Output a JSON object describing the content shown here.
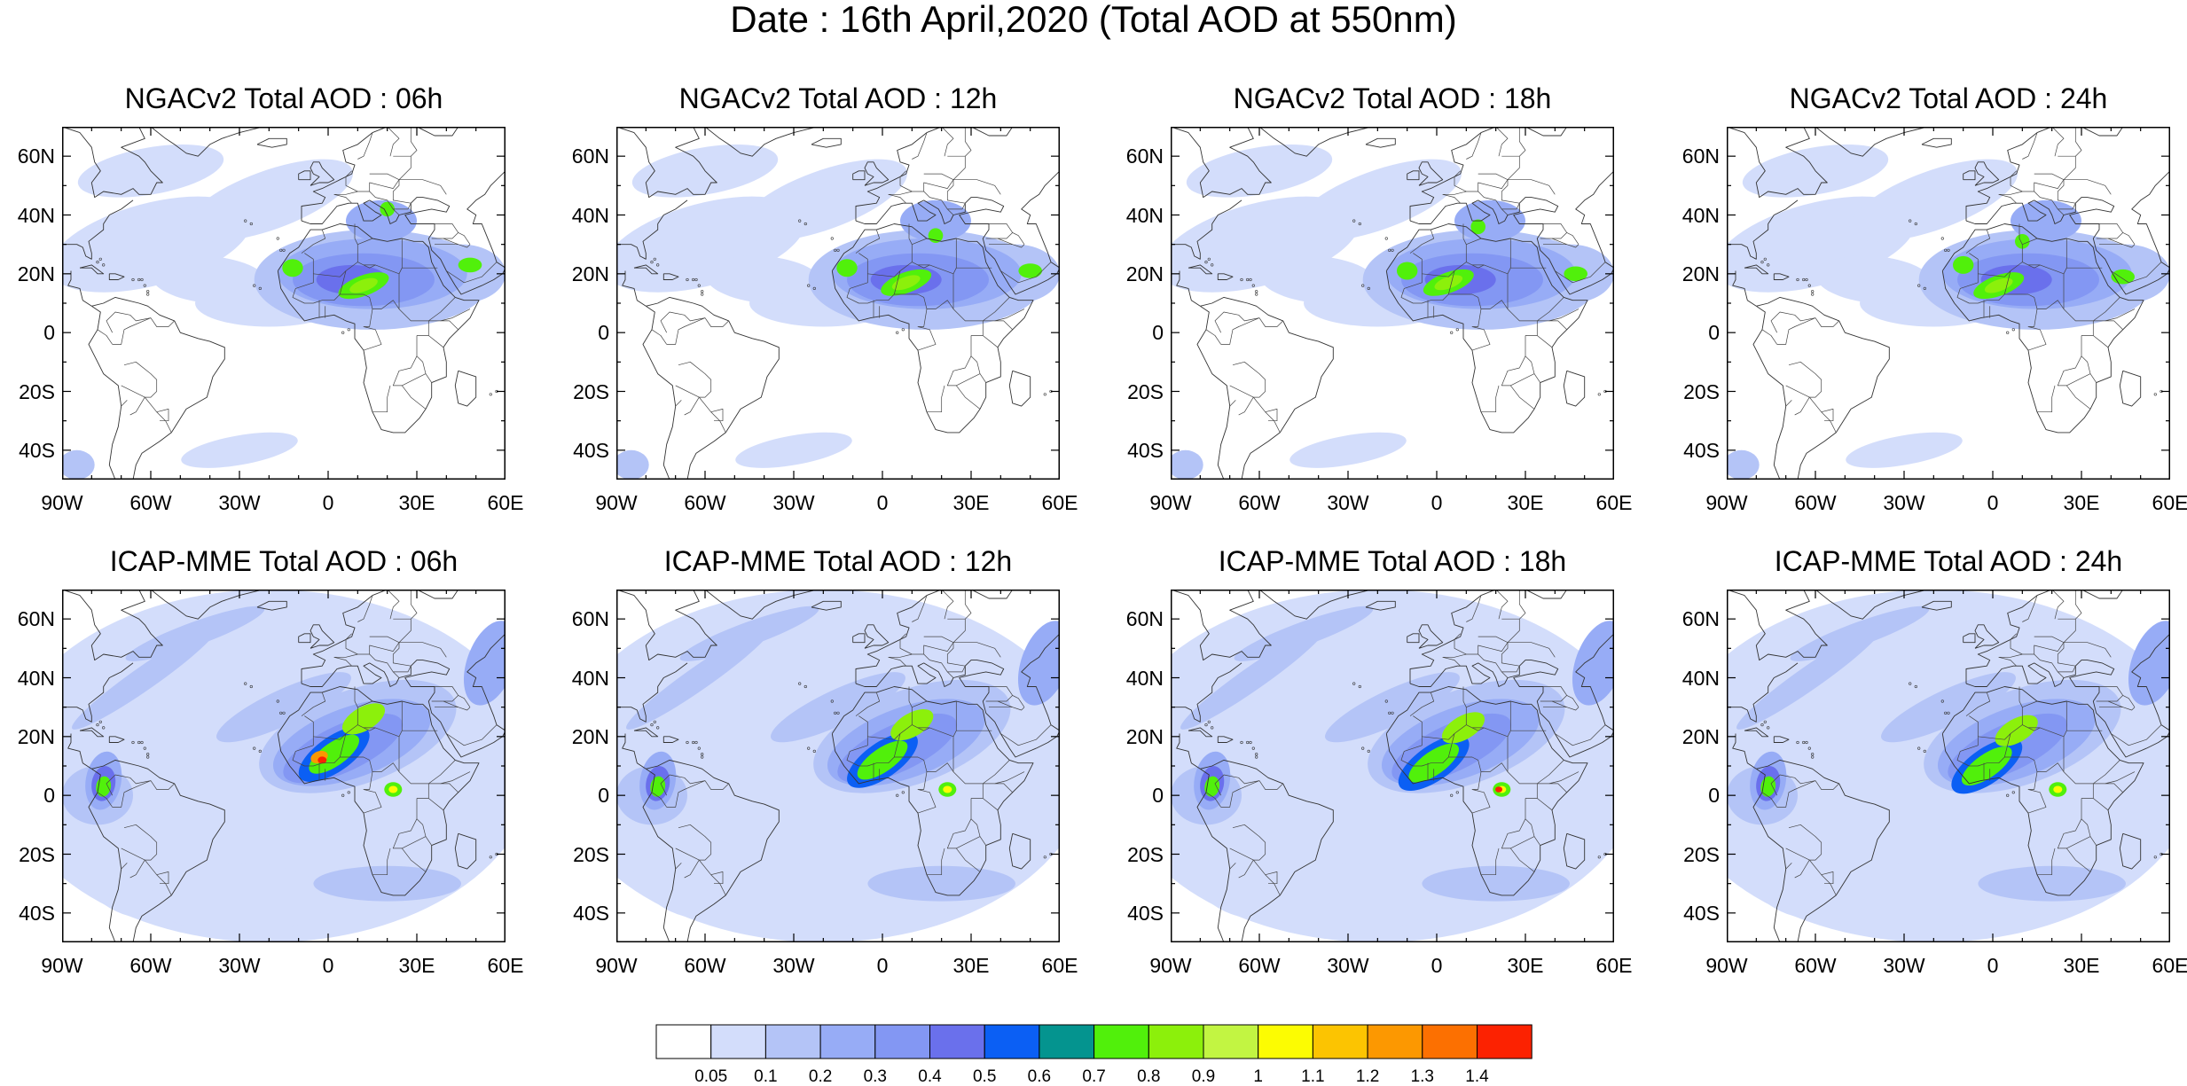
{
  "title": "Date : 16th April,2020 (Total AOD at 550nm)",
  "lat_labels": [
    "60N",
    "40N",
    "20N",
    "0",
    "20S",
    "40S"
  ],
  "lon_labels": [
    "90W",
    "60W",
    "30W",
    "0",
    "30E",
    "60E"
  ],
  "map_extent": {
    "lon_min": -90,
    "lon_max": 60,
    "lat_min": -50,
    "lat_max": 70
  },
  "panels": [
    {
      "title": "NGACv2 Total AOD : 06h",
      "model": "NGACv2",
      "hour": "06h"
    },
    {
      "title": "NGACv2 Total AOD : 12h",
      "model": "NGACv2",
      "hour": "12h"
    },
    {
      "title": "NGACv2 Total AOD : 18h",
      "model": "NGACv2",
      "hour": "18h"
    },
    {
      "title": "NGACv2 Total AOD : 24h",
      "model": "NGACv2",
      "hour": "24h"
    },
    {
      "title": "ICAP-MME Total AOD : 06h",
      "model": "ICAP-MME",
      "hour": "06h"
    },
    {
      "title": "ICAP-MME Total AOD : 12h",
      "model": "ICAP-MME",
      "hour": "12h"
    },
    {
      "title": "ICAP-MME Total AOD : 18h",
      "model": "ICAP-MME",
      "hour": "18h"
    },
    {
      "title": "ICAP-MME Total AOD : 24h",
      "model": "ICAP-MME",
      "hour": "24h"
    }
  ],
  "colorbar": {
    "levels": [
      "0.05",
      "0.1",
      "0.2",
      "0.3",
      "0.4",
      "0.5",
      "0.6",
      "0.7",
      "0.8",
      "0.9",
      "1",
      "1.1",
      "1.2",
      "1.3",
      "1.4"
    ],
    "colors": [
      "#ffffff",
      "#d3ddfb",
      "#b4c4f7",
      "#97acf6",
      "#8397f3",
      "#6a70ec",
      "#0b5ff4",
      "#04948f",
      "#51f00b",
      "#8cf00b",
      "#c2f542",
      "#fcfc02",
      "#fcc401",
      "#fc9801",
      "#fc7001",
      "#fc2201"
    ]
  }
}
